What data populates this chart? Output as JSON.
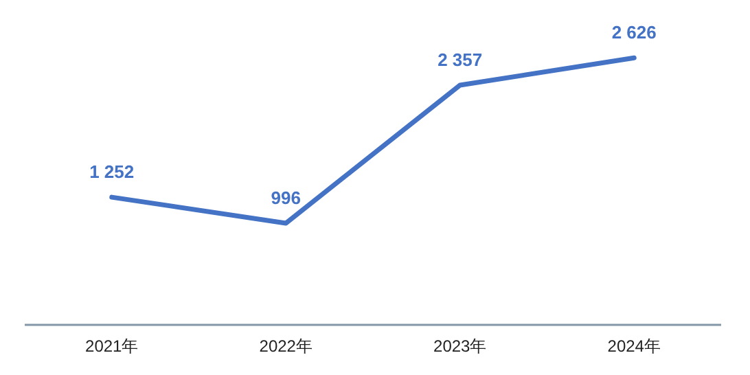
{
  "chart_data": {
    "type": "line",
    "categories": [
      "2021年",
      "2022年",
      "2023年",
      "2024年"
    ],
    "series": [
      {
        "color": "#4472c4",
        "values": [
          1252,
          996,
          2357,
          2626
        ],
        "value_labels": [
          "1 252",
          "996",
          "2 357",
          "2 626"
        ]
      }
    ],
    "marker": "none",
    "grid": false
  }
}
